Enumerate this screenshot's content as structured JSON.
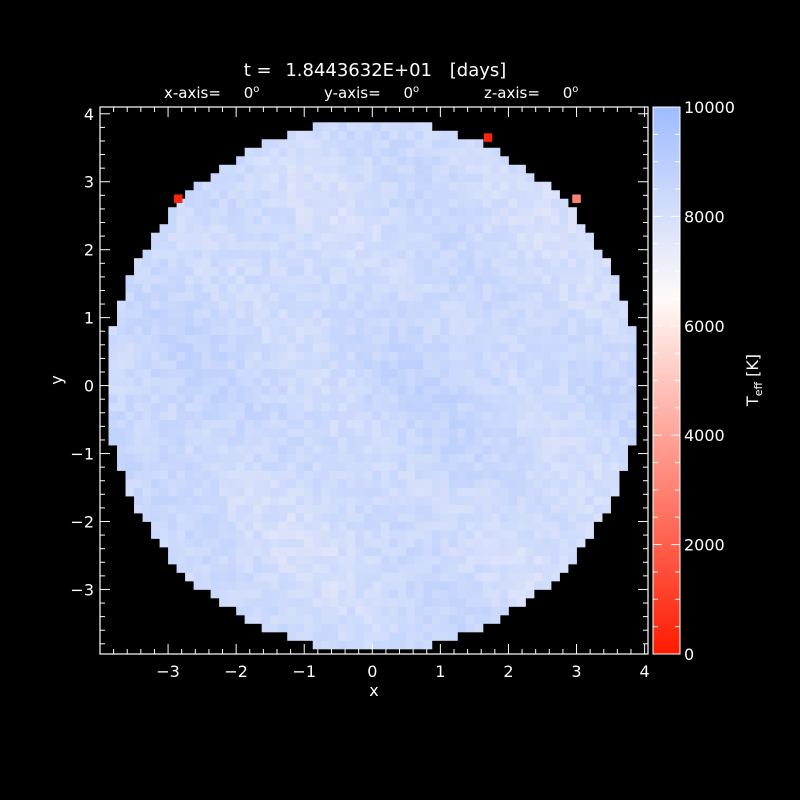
{
  "chart_data": {
    "type": "heatmap",
    "title": {
      "prefix": "t = ",
      "value": "1.8443632E+01",
      "unit": "[days]"
    },
    "view_angles": [
      {
        "label": "x-axis=",
        "value": "0",
        "unit": "o"
      },
      {
        "label": "y-axis=",
        "value": "0",
        "unit": "o"
      },
      {
        "label": "z-axis=",
        "value": "0",
        "unit": "o"
      }
    ],
    "xlabel": "x",
    "ylabel": "y",
    "xlim": [
      -4.0,
      4.05
    ],
    "ylim": [
      -3.95,
      4.1
    ],
    "x_ticks": [
      -3,
      -2,
      -1,
      0,
      1,
      2,
      3,
      4
    ],
    "y_ticks": [
      -3,
      -2,
      -1,
      0,
      1,
      2,
      3,
      4
    ],
    "x_tick_labels": [
      "−3",
      "−2",
      "−1",
      "0",
      "1",
      "2",
      "3",
      "4"
    ],
    "y_tick_labels": [
      "−3",
      "−2",
      "−1",
      "0",
      "1",
      "2",
      "3",
      "4"
    ],
    "disk": {
      "center": [
        0,
        0
      ],
      "radius": 3.9,
      "cell_size": 0.125
    },
    "typical_value_range": [
      7600,
      9000
    ],
    "hotspots": [
      {
        "x": -2.85,
        "y": 2.75,
        "value": 300
      },
      {
        "x": 1.7,
        "y": 3.65,
        "value": 300
      },
      {
        "x": 3.0,
        "y": 2.75,
        "value": 3000
      }
    ],
    "colorbar": {
      "label_main": "T",
      "label_sub": "eff",
      "label_unit": "[K]",
      "range": [
        0,
        10000
      ],
      "ticks": [
        0,
        2000,
        4000,
        6000,
        8000,
        10000
      ],
      "tick_labels": [
        "0",
        "2000",
        "4000",
        "6000",
        "8000",
        "10000"
      ],
      "colors": [
        "#ff1a00",
        "#fffaf8",
        "#9ebcff"
      ]
    },
    "colors": {
      "background": "#000000",
      "axes": "#ffffff"
    }
  }
}
